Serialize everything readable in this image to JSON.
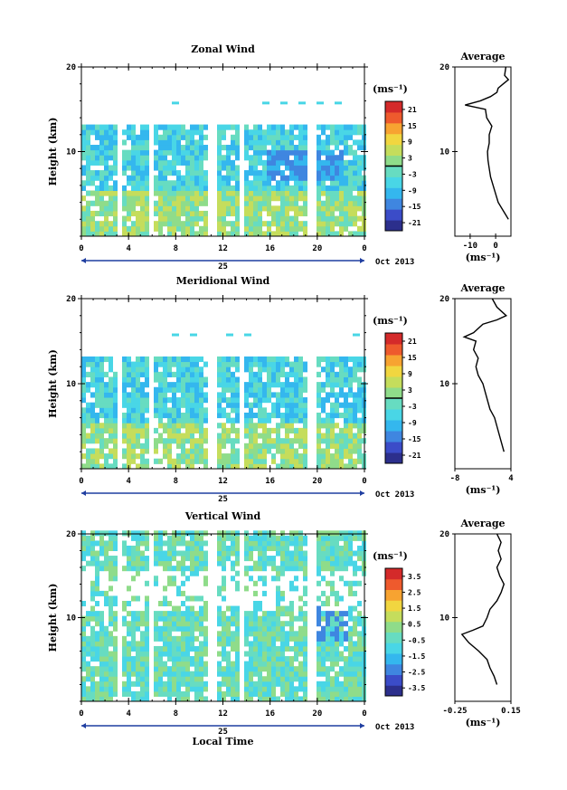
{
  "chart_data": [
    {
      "type": "heatmap",
      "title": "Zonal Wind",
      "ylabel": "Height (km)",
      "ylim": [
        0,
        20
      ],
      "yticks": [
        "20",
        "10"
      ],
      "xticks": [
        "0",
        "4",
        "8",
        "12",
        "16",
        "20",
        "0"
      ],
      "day_label": "25",
      "month_label": "Oct 2013",
      "colorbar": {
        "unit": "(ms⁻¹)",
        "ticks": [
          "21",
          "15",
          "9",
          "3",
          "-3",
          "-9",
          "-15",
          "-21"
        ],
        "range": [
          -24,
          24
        ],
        "zero_contour": true
      },
      "average": {
        "title": "Average",
        "xticks": [
          "-10",
          "0"
        ],
        "xlabel": "(ms⁻¹)",
        "xlim": [
          -16,
          6
        ],
        "profile": [
          {
            "h": 2.0,
            "v": 5.0
          },
          {
            "h": 2.5,
            "v": 4.0
          },
          {
            "h": 3.0,
            "v": 3.0
          },
          {
            "h": 4.0,
            "v": 1.0
          },
          {
            "h": 5.0,
            "v": 0.0
          },
          {
            "h": 6.0,
            "v": -1.0
          },
          {
            "h": 7.0,
            "v": -2.0
          },
          {
            "h": 8.0,
            "v": -2.5
          },
          {
            "h": 9.0,
            "v": -3.0
          },
          {
            "h": 10.0,
            "v": -3.2
          },
          {
            "h": 11.0,
            "v": -2.5
          },
          {
            "h": 12.0,
            "v": -2.5
          },
          {
            "h": 13.0,
            "v": -1.5
          },
          {
            "h": 14.0,
            "v": -3.5
          },
          {
            "h": 15.0,
            "v": -4.0
          },
          {
            "h": 15.5,
            "v": -12.0
          },
          {
            "h": 16.0,
            "v": -6.0
          },
          {
            "h": 16.5,
            "v": -2.0
          },
          {
            "h": 17.0,
            "v": 0.5
          },
          {
            "h": 17.5,
            "v": 1.0
          },
          {
            "h": 18.0,
            "v": 3.0
          },
          {
            "h": 18.5,
            "v": 5.0
          },
          {
            "h": 19.0,
            "v": 3.5
          },
          {
            "h": 20.0,
            "v": 4.0
          }
        ]
      }
    },
    {
      "type": "heatmap",
      "title": "Meridional Wind",
      "ylabel": "Height (km)",
      "ylim": [
        0,
        20
      ],
      "yticks": [
        "20",
        "10"
      ],
      "xticks": [
        "0",
        "4",
        "8",
        "12",
        "16",
        "20",
        "0"
      ],
      "day_label": "25",
      "month_label": "Oct 2013",
      "colorbar": {
        "unit": "(ms⁻¹)",
        "ticks": [
          "21",
          "15",
          "9",
          "3",
          "-3",
          "-9",
          "-15",
          "-21"
        ],
        "range": [
          -24,
          24
        ],
        "zero_contour": true
      },
      "average": {
        "title": "Average",
        "xticks": [
          "-8",
          "4"
        ],
        "xlabel": "(ms⁻¹)",
        "xlim": [
          -8,
          4
        ],
        "profile": [
          {
            "h": 2.0,
            "v": 2.5
          },
          {
            "h": 3.0,
            "v": 2.0
          },
          {
            "h": 4.0,
            "v": 1.5
          },
          {
            "h": 5.0,
            "v": 1.0
          },
          {
            "h": 6.0,
            "v": 0.5
          },
          {
            "h": 7.0,
            "v": -0.5
          },
          {
            "h": 8.0,
            "v": -1.0
          },
          {
            "h": 9.0,
            "v": -1.5
          },
          {
            "h": 10.0,
            "v": -2.0
          },
          {
            "h": 11.0,
            "v": -3.0
          },
          {
            "h": 12.0,
            "v": -3.5
          },
          {
            "h": 13.0,
            "v": -3.0
          },
          {
            "h": 14.0,
            "v": -4.0
          },
          {
            "h": 15.0,
            "v": -3.5
          },
          {
            "h": 15.5,
            "v": -6.0
          },
          {
            "h": 16.0,
            "v": -4.0
          },
          {
            "h": 17.0,
            "v": -2.0
          },
          {
            "h": 17.5,
            "v": 1.0
          },
          {
            "h": 18.0,
            "v": 3.0
          },
          {
            "h": 19.0,
            "v": 1.0
          },
          {
            "h": 20.0,
            "v": 0.0
          }
        ]
      }
    },
    {
      "type": "heatmap",
      "title": "Vertical Wind",
      "ylabel": "Height (km)",
      "xlabel": "Local Time",
      "ylim": [
        0,
        20
      ],
      "yticks": [
        "20",
        "10"
      ],
      "xticks": [
        "0",
        "4",
        "8",
        "12",
        "16",
        "20",
        "0"
      ],
      "day_label": "25",
      "month_label": "Oct 2013",
      "colorbar": {
        "unit": "(ms⁻¹)",
        "ticks": [
          "3.5",
          "2.5",
          "1.5",
          "0.5",
          "-0.5",
          "-1.5",
          "-2.5",
          "-3.5"
        ],
        "range": [
          -4,
          4
        ],
        "zero_contour": false
      },
      "average": {
        "title": "Average",
        "xticks": [
          "-0.25",
          "0.15"
        ],
        "xlabel": "(ms⁻¹)",
        "xlim": [
          -0.25,
          0.15
        ],
        "profile": [
          {
            "h": 2.0,
            "v": 0.05
          },
          {
            "h": 3.0,
            "v": 0.03
          },
          {
            "h": 4.0,
            "v": 0.0
          },
          {
            "h": 5.0,
            "v": -0.02
          },
          {
            "h": 6.0,
            "v": -0.08
          },
          {
            "h": 7.0,
            "v": -0.15
          },
          {
            "h": 8.0,
            "v": -0.2
          },
          {
            "h": 8.5,
            "v": -0.12
          },
          {
            "h": 9.0,
            "v": -0.05
          },
          {
            "h": 10.0,
            "v": -0.02
          },
          {
            "h": 11.0,
            "v": 0.0
          },
          {
            "h": 12.0,
            "v": 0.05
          },
          {
            "h": 13.0,
            "v": 0.08
          },
          {
            "h": 14.0,
            "v": 0.1
          },
          {
            "h": 15.0,
            "v": 0.07
          },
          {
            "h": 16.0,
            "v": 0.05
          },
          {
            "h": 17.0,
            "v": 0.08
          },
          {
            "h": 18.0,
            "v": 0.06
          },
          {
            "h": 19.0,
            "v": 0.08
          },
          {
            "h": 20.0,
            "v": 0.05
          }
        ]
      }
    }
  ]
}
